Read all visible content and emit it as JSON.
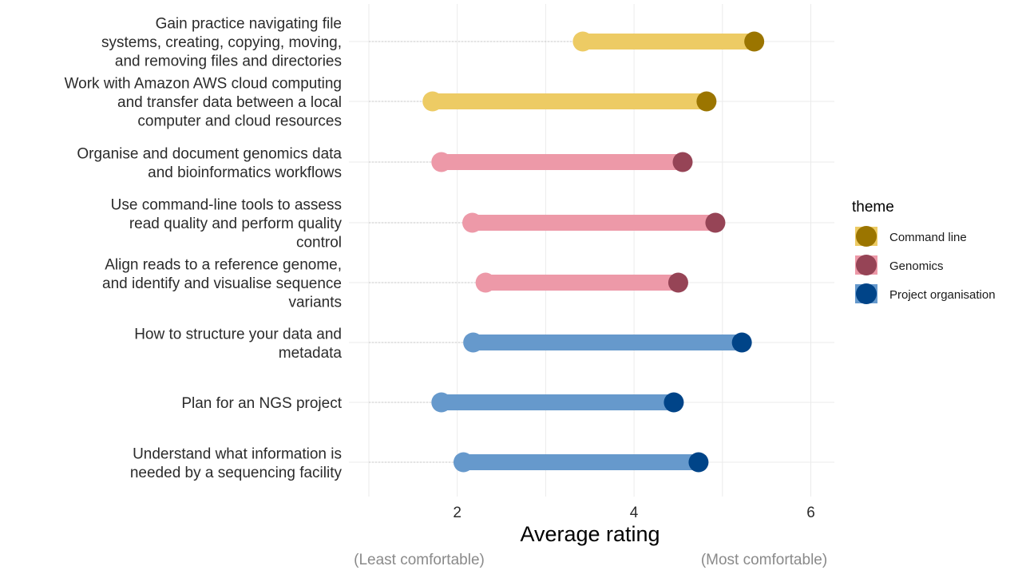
{
  "chart_data": {
    "type": "dumbbell",
    "xlabel": "Average rating",
    "xlim": [
      0.98,
      6.26
    ],
    "xticks": [
      2,
      4,
      6
    ],
    "grid": true,
    "caption_left": "(Least comfortable)",
    "caption_right": "(Most comfortable)",
    "legend": {
      "title": "theme",
      "placement": "right",
      "entries": [
        {
          "name": "Command line",
          "light": "#EDCB64",
          "dark": "#9B7500"
        },
        {
          "name": "Genomics",
          "light": "#ED99A8",
          "dark": "#964456"
        },
        {
          "name": "Project organisation",
          "light": "#6699CC",
          "dark": "#004488"
        }
      ]
    },
    "rows": [
      {
        "label": [
          "Gain practice navigating file",
          "systems, creating, copying, moving,",
          "and removing files and directories"
        ],
        "theme": "Command line",
        "before": 3.42,
        "after": 5.36
      },
      {
        "label": [
          "Work with Amazon AWS cloud computing",
          "and transfer data between a local",
          "computer and cloud resources"
        ],
        "theme": "Command line",
        "before": 1.72,
        "after": 4.82
      },
      {
        "label": [
          "Organise and document genomics data",
          "and bioinformatics workflows"
        ],
        "theme": "Genomics",
        "before": 1.82,
        "after": 4.55
      },
      {
        "label": [
          "Use command-line tools to assess",
          "read quality and perform quality",
          "control"
        ],
        "theme": "Genomics",
        "before": 2.17,
        "after": 4.92
      },
      {
        "label": [
          "Align reads to a reference genome,",
          "and identify and visualise sequence",
          "variants"
        ],
        "theme": "Genomics",
        "before": 2.32,
        "after": 4.5
      },
      {
        "label": [
          "How to structure your data and",
          "metadata"
        ],
        "theme": "Project organisation",
        "before": 2.18,
        "after": 5.22
      },
      {
        "label": [
          "Plan for an NGS project"
        ],
        "theme": "Project organisation",
        "before": 1.82,
        "after": 4.45
      },
      {
        "label": [
          "Understand what information is",
          "needed by a sequencing facility"
        ],
        "theme": "Project organisation",
        "before": 2.07,
        "after": 4.73
      }
    ]
  }
}
